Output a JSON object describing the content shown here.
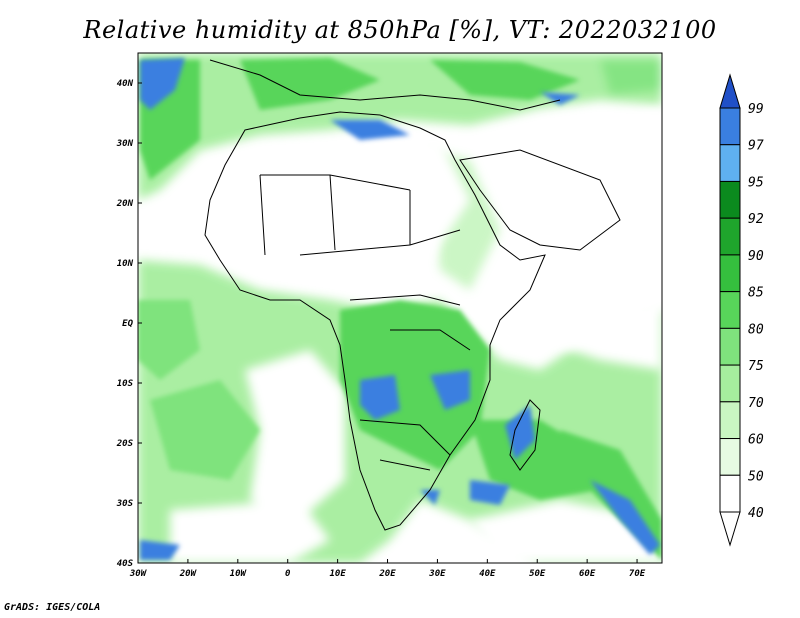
{
  "title": "Relative humidity at 850hPa [%], VT: 2022032100",
  "credit": "GrADS: IGES/COLA",
  "map": {
    "lon_range": [
      -30,
      75
    ],
    "lat_range": [
      -40,
      45
    ],
    "lat_labels": [
      "40N",
      "30N",
      "20N",
      "10N",
      "EQ",
      "10S",
      "20S",
      "30S",
      "40S"
    ],
    "lon_labels": [
      "30W",
      "20W",
      "10W",
      "0",
      "10E",
      "20E",
      "30E",
      "40E",
      "50E",
      "60E",
      "70E"
    ]
  },
  "colorbar": {
    "levels": [
      "99",
      "97",
      "95",
      "92",
      "90",
      "85",
      "80",
      "75",
      "70",
      "60",
      "50",
      "40"
    ],
    "colors": [
      "#2050c8",
      "#3a7fe0",
      "#5fb0f0",
      "#0b8a1e",
      "#1fa52c",
      "#35bf3e",
      "#58d55a",
      "#7fe37d",
      "#a6ee9e",
      "#c9f6c2",
      "#e6fbe2",
      "#ffffff"
    ]
  }
}
